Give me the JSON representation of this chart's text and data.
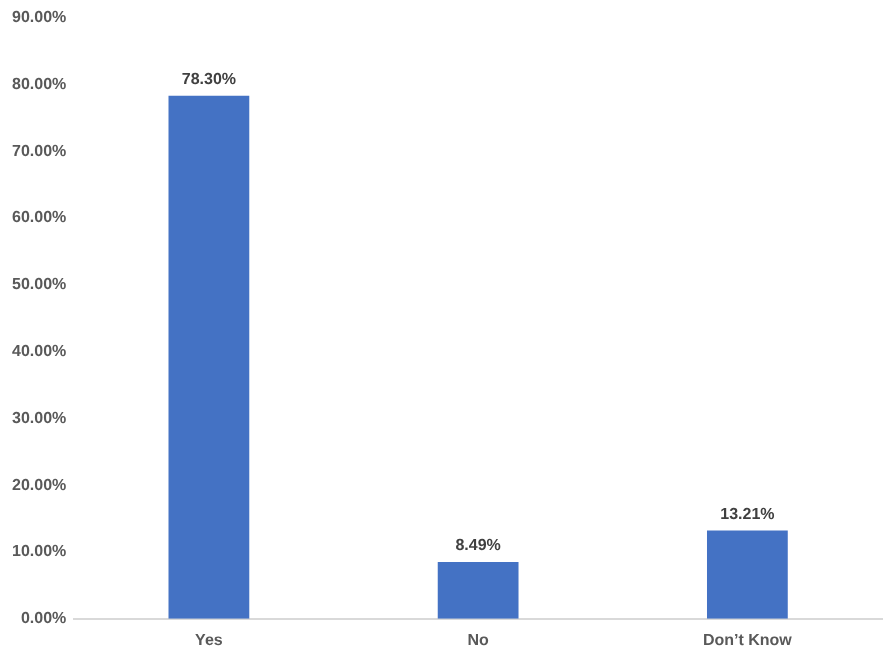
{
  "chart_data": {
    "type": "bar",
    "categories": [
      "Yes",
      "No",
      "Don’t Know"
    ],
    "values": [
      78.3,
      8.49,
      13.21
    ],
    "color": "#4472c4",
    "value_labels": [
      "78.30%",
      "8.49%",
      "13.21%"
    ],
    "ylim": [
      0,
      90
    ],
    "yticks": [
      {
        "value": 0,
        "label": "0.00%"
      },
      {
        "value": 10,
        "label": "10.00%"
      },
      {
        "value": 20,
        "label": "20.00%"
      },
      {
        "value": 30,
        "label": "30.00%"
      },
      {
        "value": 40,
        "label": "40.00%"
      },
      {
        "value": 50,
        "label": "50.00%"
      },
      {
        "value": 60,
        "label": "60.00%"
      },
      {
        "value": 70,
        "label": "70.00%"
      },
      {
        "value": 80,
        "label": "80.00%"
      },
      {
        "value": 90,
        "label": "90.00%"
      }
    ],
    "grid": false,
    "legend": false
  }
}
